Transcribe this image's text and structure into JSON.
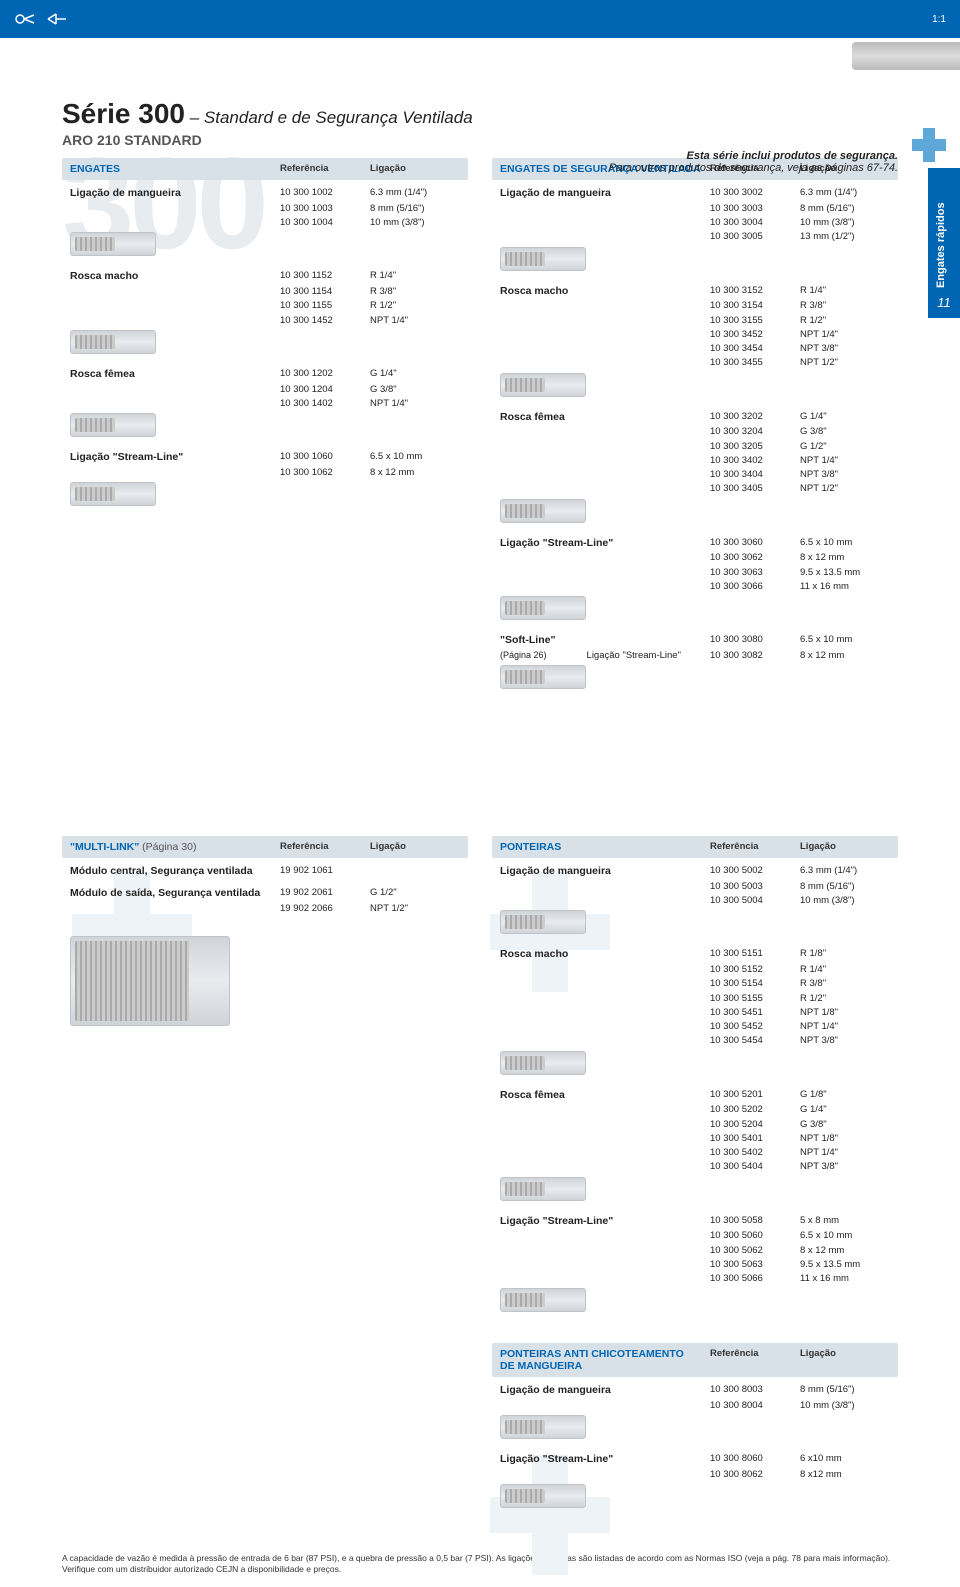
{
  "ratio": "1:1",
  "title_main": "Série 300",
  "title_dash": " – ",
  "title_sub": "Standard e de Segurança Ventilada",
  "subtitle": "ARO 210 STANDARD",
  "safety_line1": "Esta série inclui produtos de segurança.",
  "safety_line2": "Para outros produtos de segurança, veja as páginas 67-74.",
  "side_tab": "Engates rápidos",
  "page_number": "11",
  "headers": {
    "ref": "Referência",
    "lig": "Ligação"
  },
  "engates": {
    "title": "ENGATES",
    "groups": [
      {
        "title": "Ligação de mangueira",
        "rows": [
          [
            "10 300 1002",
            "6.3 mm (1/4\")"
          ],
          [
            "10 300 1003",
            "8 mm (5/16\")"
          ],
          [
            "10 300 1004",
            "10 mm (3/8\")"
          ]
        ]
      },
      {
        "title": "Rosca macho",
        "rows": [
          [
            "10 300 1152",
            "R 1/4\""
          ],
          [
            "10 300 1154",
            "R 3/8\""
          ],
          [
            "10 300 1155",
            "R 1/2\""
          ],
          [
            "10 300 1452",
            "NPT 1/4\""
          ]
        ]
      },
      {
        "title": "Rosca fêmea",
        "rows": [
          [
            "10 300 1202",
            "G 1/4\""
          ],
          [
            "10 300 1204",
            "G 3/8\""
          ],
          [
            "10 300 1402",
            "NPT 1/4\""
          ]
        ]
      },
      {
        "title": "Ligação \"Stream-Line\"",
        "rows": [
          [
            "10 300 1060",
            "6.5 x 10 mm"
          ],
          [
            "10 300 1062",
            "8 x 12 mm"
          ]
        ]
      }
    ]
  },
  "engates_seg": {
    "title": "ENGATES DE SEGURANÇA VENTILADA",
    "groups": [
      {
        "title": "Ligação de mangueira",
        "rows": [
          [
            "10 300 3002",
            "6.3 mm (1/4\")"
          ],
          [
            "10 300 3003",
            "8 mm (5/16\")"
          ],
          [
            "10 300 3004",
            "10 mm (3/8\")"
          ],
          [
            "10 300 3005",
            "13 mm (1/2\")"
          ]
        ]
      },
      {
        "title": "Rosca macho",
        "rows": [
          [
            "10 300 3152",
            "R 1/4\""
          ],
          [
            "10 300 3154",
            "R 3/8\""
          ],
          [
            "10 300 3155",
            "R 1/2\""
          ],
          [
            "10 300 3452",
            "NPT 1/4\""
          ],
          [
            "10 300 3454",
            "NPT 3/8\""
          ],
          [
            "10 300 3455",
            "NPT 1/2\""
          ]
        ]
      },
      {
        "title": "Rosca fêmea",
        "rows": [
          [
            "10 300 3202",
            "G 1/4\""
          ],
          [
            "10 300 3204",
            "G 3/8\""
          ],
          [
            "10 300 3205",
            "G 1/2\""
          ],
          [
            "10 300 3402",
            "NPT 1/4\""
          ],
          [
            "10 300 3404",
            "NPT 3/8\""
          ],
          [
            "10 300 3405",
            "NPT 1/2\""
          ]
        ]
      },
      {
        "title": "Ligação \"Stream-Line\"",
        "rows": [
          [
            "10 300 3060",
            "6.5 x 10 mm"
          ],
          [
            "10 300 3062",
            "8 x 12 mm"
          ],
          [
            "10 300 3063",
            "9.5 x 13.5 mm"
          ],
          [
            "10 300 3066",
            "11 x 16 mm"
          ]
        ]
      },
      {
        "title": "\"Soft-Line\"",
        "sub": "Ligação \"Stream-Line\"",
        "page": "(Página 26)",
        "rows": [
          [
            "10 300 3080",
            "6.5 x 10 mm"
          ],
          [
            "10 300 3082",
            "8 x 12 mm"
          ]
        ]
      }
    ]
  },
  "multilink": {
    "title": "\"MULTI-LINK\" ",
    "title_sub": "(Página 30)",
    "groups": [
      {
        "title": "Módulo central, Segurança ventilada",
        "rows": [
          [
            "19 902 1061",
            ""
          ]
        ]
      },
      {
        "title": "Módulo de saída, Segurança ventilada",
        "rows": [
          [
            "19 902 2061",
            "G 1/2\""
          ],
          [
            "19 902 2066",
            "NPT 1/2\""
          ]
        ]
      }
    ]
  },
  "ponteiras": {
    "title": "PONTEIRAS",
    "groups": [
      {
        "title": "Ligação de mangueira",
        "rows": [
          [
            "10 300 5002",
            "6.3 mm (1/4\")"
          ],
          [
            "10 300 5003",
            "8 mm (5/16\")"
          ],
          [
            "10 300 5004",
            "10 mm (3/8\")"
          ]
        ]
      },
      {
        "title": "Rosca macho",
        "rows": [
          [
            "10 300 5151",
            "R 1/8\""
          ],
          [
            "10 300 5152",
            "R 1/4\""
          ],
          [
            "10 300 5154",
            "R 3/8\""
          ],
          [
            "10 300 5155",
            "R 1/2\""
          ],
          [
            "10 300 5451",
            "NPT 1/8\""
          ],
          [
            "10 300 5452",
            "NPT 1/4\""
          ],
          [
            "10 300 5454",
            "NPT 3/8\""
          ]
        ]
      },
      {
        "title": "Rosca fêmea",
        "rows": [
          [
            "10 300 5201",
            "G 1/8\""
          ],
          [
            "10 300 5202",
            "G 1/4\""
          ],
          [
            "10 300 5204",
            "G 3/8\""
          ],
          [
            "10 300 5401",
            "NPT 1/8\""
          ],
          [
            "10 300 5402",
            "NPT 1/4\""
          ],
          [
            "10 300 5404",
            "NPT 3/8\""
          ]
        ]
      },
      {
        "title": "Ligação \"Stream-Line\"",
        "rows": [
          [
            "10 300 5058",
            "5 x 8 mm"
          ],
          [
            "10 300 5060",
            "6.5 x 10 mm"
          ],
          [
            "10 300 5062",
            "8 x 12 mm"
          ],
          [
            "10 300 5063",
            "9.5 x 13.5 mm"
          ],
          [
            "10 300 5066",
            "11 x 16 mm"
          ]
        ]
      }
    ]
  },
  "ponteiras_anti": {
    "title1": "PONTEIRAS ANTI CHICOTEAMENTO",
    "title2": "DE MANGUEIRA",
    "groups": [
      {
        "title": "Ligação de mangueira",
        "rows": [
          [
            "10 300 8003",
            "8 mm (5/16\")"
          ],
          [
            "10 300 8004",
            "10 mm (3/8\")"
          ]
        ]
      },
      {
        "title": "Ligação \"Stream-Line\"",
        "rows": [
          [
            "10 300 8060",
            "6 x10 mm"
          ],
          [
            "10 300 8062",
            "8 x12 mm"
          ]
        ]
      }
    ]
  },
  "footnote": "A capacidade de vazão é medida à pressão de entrada de 6 bar (87 PSI), e a quebra de pressão a 0,5 bar (7 PSI). As ligações roscadas são listadas de acordo com as Normas ISO (veja a pág. 78 para mais informação). Verifique com um distribuidor autorizado CEJN a disponibilidade e preços.",
  "colors": {
    "brand_blue": "#0066b3",
    "header_bg": "#d8e0e8",
    "soft_plus": "#eef3f8",
    "safety_plus": "#5da8d8",
    "bg_number": "#e8ecef"
  }
}
